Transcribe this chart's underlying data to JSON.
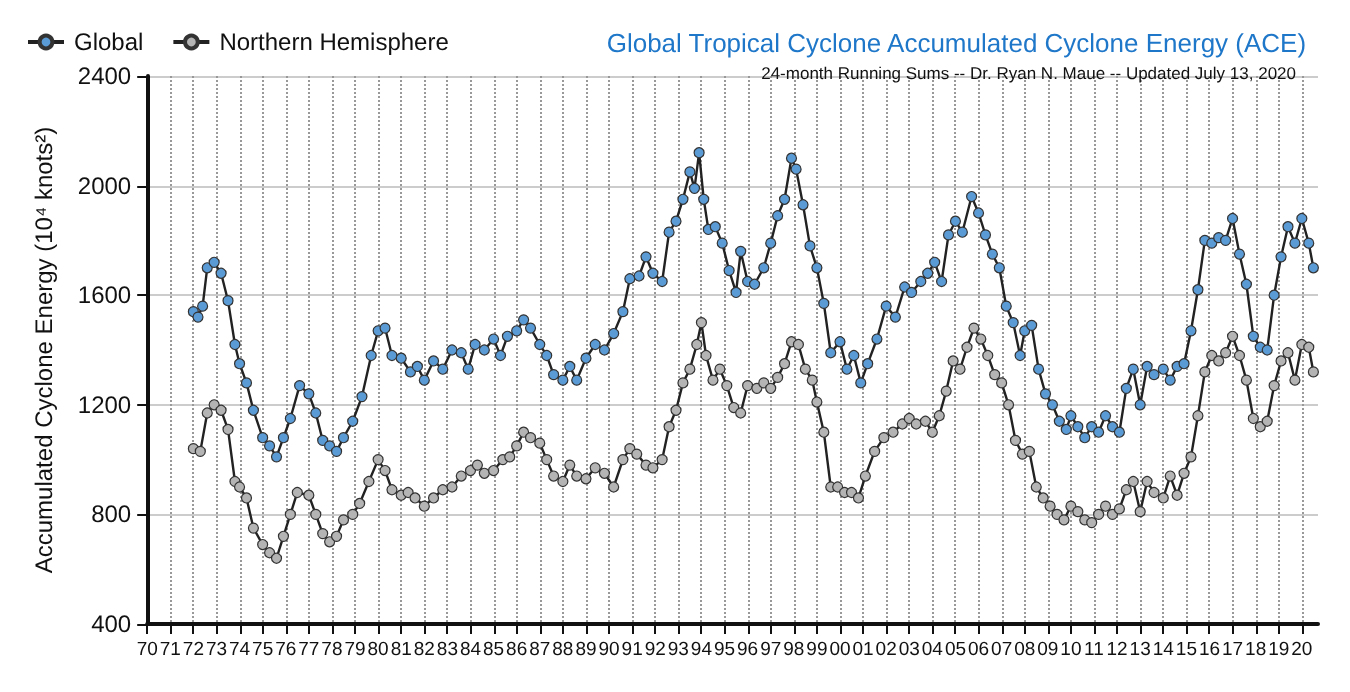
{
  "chart_data": {
    "type": "line",
    "title": "Global Tropical Cyclone Accumulated Cyclone Energy (ACE)",
    "subtitle": "24-month Running Sums -- Dr. Ryan N. Maue -- Updated July 13, 2020",
    "ylabel": "Accumulated Cyclone Energy (10⁴ knots²)",
    "legend": "top left",
    "grid": true,
    "marker": "circle",
    "line_style": "solid",
    "xlim": [
      1970,
      2020.7
    ],
    "ylim": [
      400,
      2400
    ],
    "yticks": [
      400,
      800,
      1200,
      1600,
      2000,
      2400
    ],
    "xticks": [
      {
        "value": 1970,
        "label": "70"
      },
      {
        "value": 1971,
        "label": "71"
      },
      {
        "value": 1972,
        "label": "72"
      },
      {
        "value": 1973,
        "label": "73"
      },
      {
        "value": 1974,
        "label": "74"
      },
      {
        "value": 1975,
        "label": "75"
      },
      {
        "value": 1976,
        "label": "76"
      },
      {
        "value": 1977,
        "label": "77"
      },
      {
        "value": 1978,
        "label": "78"
      },
      {
        "value": 1979,
        "label": "79"
      },
      {
        "value": 1980,
        "label": "80"
      },
      {
        "value": 1981,
        "label": "81"
      },
      {
        "value": 1982,
        "label": "82"
      },
      {
        "value": 1983,
        "label": "83"
      },
      {
        "value": 1984,
        "label": "84"
      },
      {
        "value": 1985,
        "label": "85"
      },
      {
        "value": 1986,
        "label": "86"
      },
      {
        "value": 1987,
        "label": "87"
      },
      {
        "value": 1988,
        "label": "88"
      },
      {
        "value": 1989,
        "label": "89"
      },
      {
        "value": 1990,
        "label": "90"
      },
      {
        "value": 1991,
        "label": "91"
      },
      {
        "value": 1992,
        "label": "92"
      },
      {
        "value": 1993,
        "label": "93"
      },
      {
        "value": 1994,
        "label": "94"
      },
      {
        "value": 1995,
        "label": "95"
      },
      {
        "value": 1996,
        "label": "96"
      },
      {
        "value": 1997,
        "label": "97"
      },
      {
        "value": 1998,
        "label": "98"
      },
      {
        "value": 1999,
        "label": "99"
      },
      {
        "value": 2000,
        "label": "00"
      },
      {
        "value": 2001,
        "label": "01"
      },
      {
        "value": 2002,
        "label": "02"
      },
      {
        "value": 2003,
        "label": "03"
      },
      {
        "value": 2004,
        "label": "04"
      },
      {
        "value": 2005,
        "label": "05"
      },
      {
        "value": 2006,
        "label": "06"
      },
      {
        "value": 2007,
        "label": "07"
      },
      {
        "value": 2008,
        "label": "08"
      },
      {
        "value": 2009,
        "label": "09"
      },
      {
        "value": 2010,
        "label": "10"
      },
      {
        "value": 2011,
        "label": "11"
      },
      {
        "value": 2012,
        "label": "12"
      },
      {
        "value": 2013,
        "label": "13"
      },
      {
        "value": 2014,
        "label": "14"
      },
      {
        "value": 2015,
        "label": "15"
      },
      {
        "value": 2016,
        "label": "16"
      },
      {
        "value": 2017,
        "label": "17"
      },
      {
        "value": 2018,
        "label": "18"
      },
      {
        "value": 2019,
        "label": "19"
      },
      {
        "value": 2020,
        "label": "20"
      }
    ],
    "series": [
      {
        "name": "Global",
        "color": "#5b9bd5",
        "x": [
          1972.0,
          1972.2,
          1972.4,
          1972.6,
          1972.9,
          1973.2,
          1973.5,
          1973.8,
          1974.0,
          1974.3,
          1974.6,
          1975.0,
          1975.3,
          1975.6,
          1975.9,
          1976.2,
          1976.6,
          1977.0,
          1977.3,
          1977.6,
          1977.9,
          1978.2,
          1978.5,
          1978.9,
          1979.3,
          1979.7,
          1980.0,
          1980.3,
          1980.6,
          1981.0,
          1981.4,
          1981.7,
          1982.0,
          1982.4,
          1982.8,
          1983.2,
          1983.6,
          1983.9,
          1984.2,
          1984.6,
          1985.0,
          1985.3,
          1985.6,
          1986.0,
          1986.3,
          1986.6,
          1987.0,
          1987.3,
          1987.6,
          1988.0,
          1988.3,
          1988.6,
          1989.0,
          1989.4,
          1989.8,
          1990.2,
          1990.6,
          1990.9,
          1991.3,
          1991.6,
          1991.9,
          1992.3,
          1992.6,
          1992.9,
          1993.2,
          1993.5,
          1993.7,
          1993.9,
          1994.1,
          1994.3,
          1994.6,
          1994.9,
          1995.2,
          1995.5,
          1995.7,
          1996.0,
          1996.3,
          1996.7,
          1997.0,
          1997.3,
          1997.6,
          1997.9,
          1998.1,
          1998.4,
          1998.7,
          1999.0,
          1999.3,
          1999.6,
          2000.0,
          2000.3,
          2000.6,
          2000.9,
          2001.2,
          2001.6,
          2002.0,
          2002.4,
          2002.8,
          2003.1,
          2003.5,
          2003.8,
          2004.1,
          2004.4,
          2004.7,
          2005.0,
          2005.3,
          2005.7,
          2006.0,
          2006.3,
          2006.6,
          2006.9,
          2007.2,
          2007.5,
          2007.8,
          2008.0,
          2008.3,
          2008.6,
          2008.9,
          2009.2,
          2009.5,
          2009.8,
          2010.0,
          2010.3,
          2010.6,
          2010.9,
          2011.2,
          2011.5,
          2011.8,
          2012.1,
          2012.4,
          2012.7,
          2013.0,
          2013.3,
          2013.6,
          2014.0,
          2014.3,
          2014.6,
          2014.9,
          2015.2,
          2015.5,
          2015.8,
          2016.1,
          2016.4,
          2016.7,
          2017.0,
          2017.3,
          2017.6,
          2017.9,
          2018.2,
          2018.5,
          2018.8,
          2019.1,
          2019.4,
          2019.7,
          2020.0,
          2020.3,
          2020.5
        ],
        "values": [
          1540,
          1520,
          1560,
          1700,
          1720,
          1680,
          1580,
          1420,
          1350,
          1280,
          1180,
          1080,
          1050,
          1010,
          1080,
          1150,
          1270,
          1240,
          1170,
          1070,
          1050,
          1030,
          1080,
          1140,
          1230,
          1380,
          1470,
          1480,
          1380,
          1370,
          1320,
          1340,
          1290,
          1360,
          1330,
          1400,
          1390,
          1330,
          1420,
          1400,
          1440,
          1380,
          1450,
          1470,
          1510,
          1480,
          1420,
          1380,
          1310,
          1290,
          1340,
          1290,
          1370,
          1420,
          1400,
          1460,
          1540,
          1660,
          1670,
          1740,
          1680,
          1650,
          1830,
          1870,
          1950,
          2050,
          1990,
          2120,
          1950,
          1840,
          1850,
          1790,
          1690,
          1610,
          1760,
          1650,
          1640,
          1700,
          1790,
          1890,
          1950,
          2100,
          2060,
          1930,
          1780,
          1700,
          1570,
          1390,
          1430,
          1330,
          1380,
          1280,
          1350,
          1440,
          1560,
          1520,
          1630,
          1610,
          1650,
          1680,
          1720,
          1650,
          1820,
          1870,
          1830,
          1960,
          1900,
          1820,
          1750,
          1700,
          1560,
          1500,
          1380,
          1470,
          1490,
          1330,
          1240,
          1200,
          1140,
          1110,
          1160,
          1120,
          1080,
          1120,
          1100,
          1160,
          1120,
          1100,
          1260,
          1330,
          1200,
          1340,
          1310,
          1330,
          1290,
          1340,
          1350,
          1470,
          1620,
          1800,
          1790,
          1810,
          1800,
          1880,
          1750,
          1640,
          1450,
          1410,
          1400,
          1600,
          1740,
          1850,
          1790,
          1880,
          1790,
          1700
        ]
      },
      {
        "name": "Northern Hemisphere",
        "color": "#b4b4b4",
        "x": [
          1972.0,
          1972.3,
          1972.6,
          1972.9,
          1973.2,
          1973.5,
          1973.8,
          1974.0,
          1974.3,
          1974.6,
          1975.0,
          1975.3,
          1975.6,
          1975.9,
          1976.2,
          1976.5,
          1977.0,
          1977.3,
          1977.6,
          1977.9,
          1978.2,
          1978.5,
          1978.9,
          1979.2,
          1979.6,
          1980.0,
          1980.3,
          1980.6,
          1981.0,
          1981.3,
          1981.6,
          1982.0,
          1982.4,
          1982.8,
          1983.2,
          1983.6,
          1984.0,
          1984.3,
          1984.6,
          1985.0,
          1985.4,
          1985.7,
          1986.0,
          1986.3,
          1986.6,
          1987.0,
          1987.3,
          1987.6,
          1988.0,
          1988.3,
          1988.6,
          1989.0,
          1989.4,
          1989.8,
          1990.2,
          1990.6,
          1990.9,
          1991.2,
          1991.6,
          1991.9,
          1992.3,
          1992.6,
          1992.9,
          1993.2,
          1993.5,
          1993.8,
          1994.0,
          1994.2,
          1994.5,
          1994.8,
          1995.1,
          1995.4,
          1995.7,
          1996.0,
          1996.4,
          1996.7,
          1997.0,
          1997.3,
          1997.6,
          1997.9,
          1998.2,
          1998.5,
          1998.8,
          1999.0,
          1999.3,
          1999.6,
          1999.9,
          2000.2,
          2000.5,
          2000.8,
          2001.1,
          2001.5,
          2001.9,
          2002.3,
          2002.7,
          2003.0,
          2003.3,
          2003.7,
          2004.0,
          2004.3,
          2004.6,
          2004.9,
          2005.2,
          2005.5,
          2005.8,
          2006.1,
          2006.4,
          2006.7,
          2007.0,
          2007.3,
          2007.6,
          2007.9,
          2008.2,
          2008.5,
          2008.8,
          2009.1,
          2009.4,
          2009.7,
          2010.0,
          2010.3,
          2010.6,
          2010.9,
          2011.2,
          2011.5,
          2011.8,
          2012.1,
          2012.4,
          2012.7,
          2013.0,
          2013.3,
          2013.6,
          2014.0,
          2014.3,
          2014.6,
          2014.9,
          2015.2,
          2015.5,
          2015.8,
          2016.1,
          2016.4,
          2016.7,
          2017.0,
          2017.3,
          2017.6,
          2017.9,
          2018.2,
          2018.5,
          2018.8,
          2019.1,
          2019.4,
          2019.7,
          2020.0,
          2020.3,
          2020.5
        ],
        "values": [
          1040,
          1030,
          1170,
          1200,
          1180,
          1110,
          920,
          900,
          860,
          750,
          690,
          660,
          640,
          720,
          800,
          880,
          870,
          800,
          730,
          700,
          720,
          780,
          800,
          840,
          920,
          1000,
          960,
          890,
          870,
          880,
          860,
          830,
          860,
          890,
          900,
          940,
          960,
          980,
          950,
          960,
          1000,
          1010,
          1050,
          1100,
          1080,
          1060,
          1000,
          940,
          920,
          980,
          940,
          930,
          970,
          950,
          900,
          1000,
          1040,
          1020,
          980,
          970,
          1000,
          1120,
          1180,
          1280,
          1330,
          1420,
          1500,
          1380,
          1290,
          1330,
          1270,
          1190,
          1170,
          1270,
          1260,
          1280,
          1260,
          1300,
          1350,
          1430,
          1420,
          1330,
          1290,
          1210,
          1100,
          900,
          900,
          880,
          880,
          860,
          940,
          1030,
          1080,
          1100,
          1130,
          1150,
          1130,
          1140,
          1100,
          1160,
          1250,
          1360,
          1330,
          1410,
          1480,
          1440,
          1380,
          1310,
          1280,
          1200,
          1070,
          1020,
          1030,
          900,
          860,
          830,
          800,
          780,
          830,
          810,
          780,
          770,
          800,
          830,
          800,
          820,
          890,
          920,
          810,
          920,
          880,
          860,
          940,
          870,
          950,
          1010,
          1160,
          1320,
          1380,
          1360,
          1390,
          1450,
          1380,
          1290,
          1150,
          1120,
          1140,
          1270,
          1360,
          1390,
          1290,
          1420,
          1410,
          1320
        ]
      }
    ]
  }
}
